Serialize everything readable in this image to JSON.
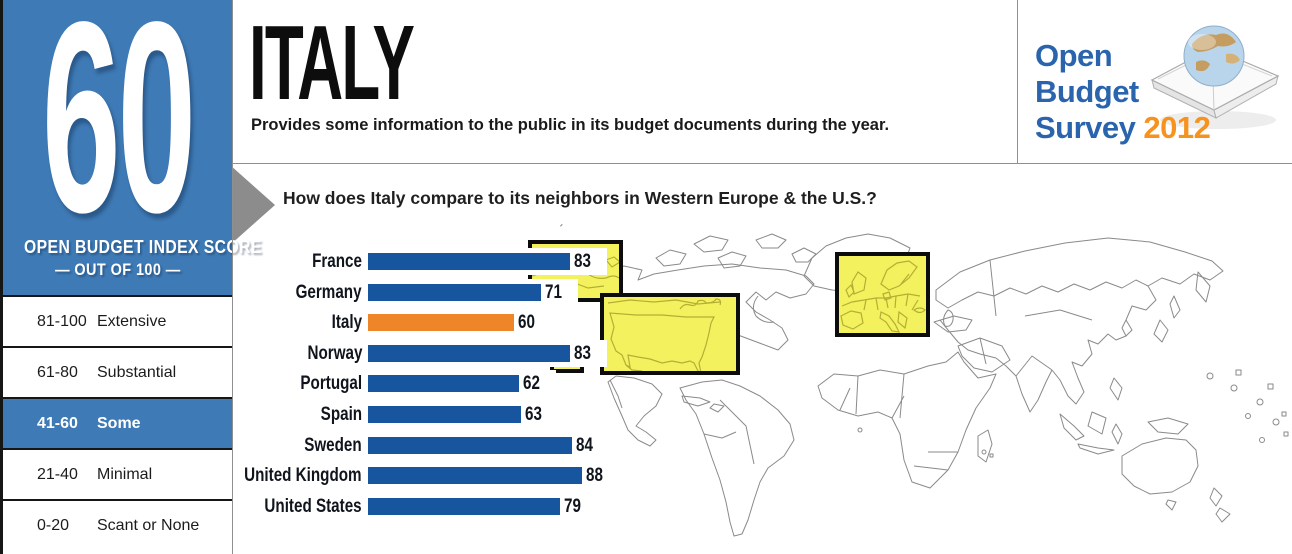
{
  "score_panel": {
    "score": "60",
    "label_line1": "OPEN BUDGET INDEX SCORE",
    "label_line2": "— OUT OF 100 —",
    "bg_color": "#3e7ab5"
  },
  "legend": {
    "rows": [
      {
        "range": "81-100",
        "label": "Extensive",
        "highlighted": false
      },
      {
        "range": "61-80",
        "label": "Substantial",
        "highlighted": false
      },
      {
        "range": "41-60",
        "label": "Some",
        "highlighted": true
      },
      {
        "range": "21-40",
        "label": "Minimal",
        "highlighted": false
      },
      {
        "range": "0-20",
        "label": "Scant or None",
        "highlighted": false
      }
    ],
    "highlight_color": "#3e7ab5"
  },
  "header": {
    "country": "ITALY",
    "subtitle": "Provides some information to the public in its budget documents during the year."
  },
  "logo": {
    "line1": "Open",
    "line2": "Budget",
    "line3": "Survey",
    "year": "2012",
    "text_color": "#2a64ad",
    "year_color": "#f6921e"
  },
  "question": "How does Italy compare to its neighbors in Western Europe & the U.S.?",
  "chart_data": {
    "type": "bar",
    "orientation": "horizontal",
    "title": "How does Italy compare to its neighbors in Western Europe & the U.S.?",
    "categories": [
      "France",
      "Germany",
      "Italy",
      "Norway",
      "Portugal",
      "Spain",
      "Sweden",
      "United Kingdom",
      "United States"
    ],
    "values": [
      83,
      71,
      60,
      83,
      62,
      63,
      84,
      88,
      79
    ],
    "highlight_category": "Italy",
    "bar_color": "#17569e",
    "highlight_color": "#ef8529",
    "value_labels_shown": true,
    "xlim": [
      0,
      100
    ],
    "grid": false,
    "legend_position": "none"
  },
  "map": {
    "inset_fill": "#f4f15e",
    "inset_border": "#0c0c0c",
    "outline_color": "#8a8a8a"
  }
}
